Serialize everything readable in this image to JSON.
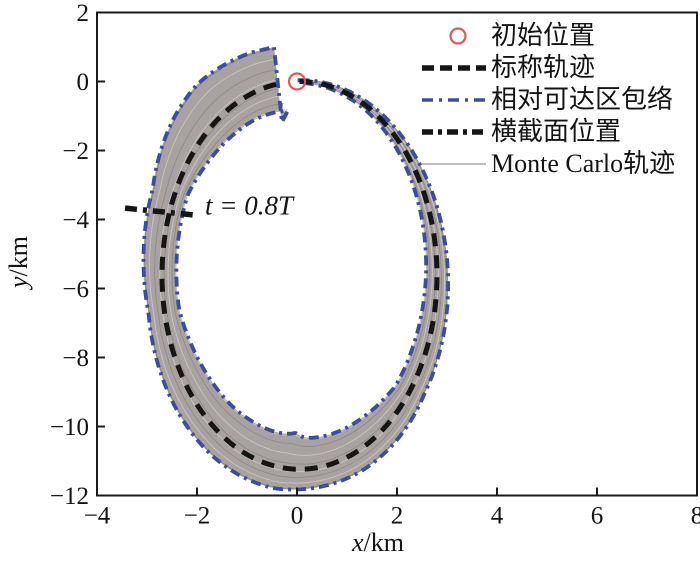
{
  "colors": {
    "nominal": "#151515",
    "envelope": "#3c4d9e",
    "band_fill": "#a8a3a0",
    "monte_carlo_light": "#cbc6c4",
    "monte_carlo_dark": "#8f8a88",
    "initial_marker": "#df5858",
    "axis": "#1a1a1a"
  },
  "legend": {
    "items": [
      {
        "label": "初始位置",
        "marker": "open-circle"
      },
      {
        "label": "标称轨迹",
        "marker": "thick-dashed-black"
      },
      {
        "label": "相对可达区包络",
        "marker": "dash-dot-blue"
      },
      {
        "label": "横截面位置",
        "marker": "thick-dash-dot-black"
      },
      {
        "label": "Monte Carlo轨迹",
        "marker": "thin-solid-gray"
      }
    ]
  },
  "chart_data": {
    "type": "line",
    "xlabel": "x/km",
    "ylabel": "y/km",
    "xlim": [
      -4,
      8
    ],
    "ylim": [
      -12,
      2
    ],
    "xticks": [
      -4,
      -2,
      0,
      2,
      4,
      6,
      8
    ],
    "xtick_labels": [
      "−4",
      "−2",
      "0",
      "2",
      "4",
      "6",
      "8"
    ],
    "yticks": [
      2,
      0,
      -2,
      -4,
      -6,
      -8,
      -10,
      -12
    ],
    "ytick_labels": [
      "2",
      "0",
      "−2",
      "−4",
      "−6",
      "−8",
      "−10",
      "−12"
    ],
    "grid": false,
    "legend_position": "upper right, no frame",
    "initial_position": [
      0,
      0
    ],
    "nominal_trajectory": {
      "shape": "ellipse_arc",
      "center": [
        0.05,
        -5.62
      ],
      "semi_axis_x_km": 2.75,
      "semi_axis_y_km": 5.62,
      "start_angle_rad": 0,
      "end_angle_rad": 6.12,
      "start_point": [
        0,
        0
      ],
      "end_point": [
        -0.4,
        -0.07
      ],
      "motion": "starts at origin, goes +x then -y, one near-full loop"
    },
    "reachable_envelope_band": {
      "t_fraction_keys": [
        0,
        0.1,
        0.25,
        0.35,
        0.45,
        0.52,
        0.62,
        0.72,
        0.82,
        0.92,
        1.0
      ],
      "outer_halfwidth_km": [
        0.04,
        0.1,
        0.22,
        0.3,
        0.5,
        0.62,
        0.45,
        0.32,
        0.46,
        0.95,
        1.1
      ],
      "inner_halfwidth_km": [
        0.04,
        0.1,
        0.22,
        0.32,
        0.8,
        1.05,
        0.62,
        0.3,
        0.26,
        0.6,
        0.95
      ],
      "terminal_edge": {
        "top": [
          -0.46,
          1.0
        ],
        "bottom": [
          -0.3,
          -1.18
        ]
      }
    },
    "cross_section_line": {
      "t_fraction": 0.8,
      "from": [
        -3.44,
        -3.67
      ],
      "to": [
        -1.98,
        -3.88
      ]
    },
    "annotation": {
      "text": "t = 0.8T",
      "x": -1.84,
      "y": -3.85
    },
    "monte_carlo_offsets": [
      -0.95,
      -0.7,
      -0.42,
      -0.15,
      0.12,
      0.4,
      0.68,
      0.95
    ]
  }
}
